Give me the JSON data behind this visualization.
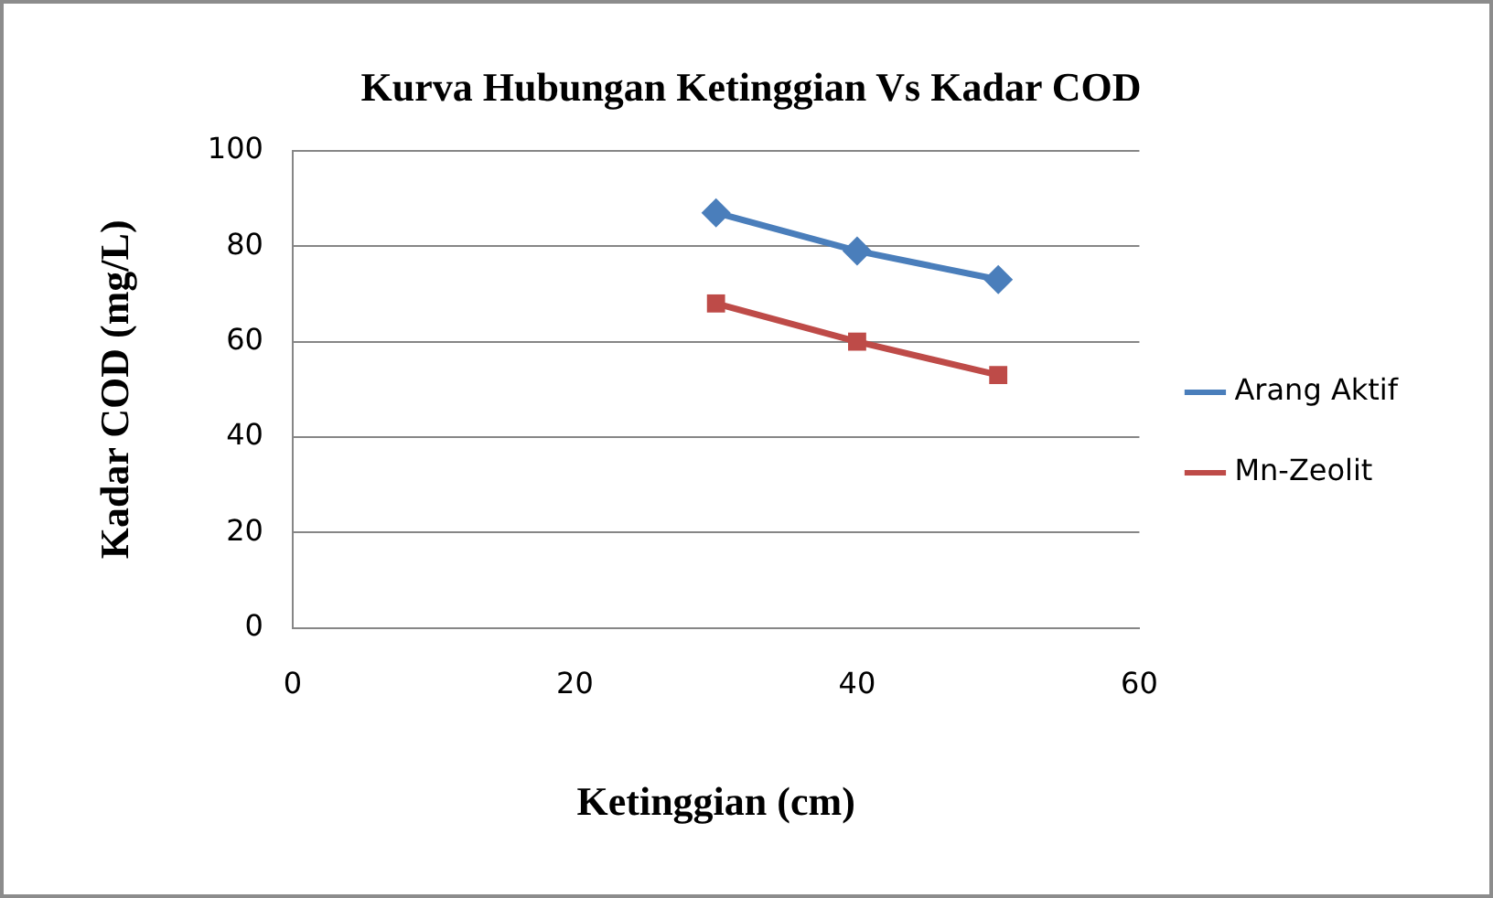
{
  "chart_data": {
    "type": "line",
    "title": "Kurva Hubungan Ketinggian Vs Kadar COD",
    "xlabel": "Ketinggian (cm)",
    "ylabel": "Kadar COD (mg/L)",
    "x": [
      30,
      40,
      50
    ],
    "series": [
      {
        "name": "Arang Aktif",
        "color": "#4a7ebb",
        "values": [
          87,
          79,
          73
        ],
        "marker": "diamond"
      },
      {
        "name": "Mn-Zeolit",
        "color": "#be4b48",
        "values": [
          68,
          60,
          53
        ],
        "marker": "square"
      }
    ],
    "xlim": [
      0,
      60
    ],
    "xticks": [
      0,
      20,
      40,
      60
    ],
    "ylim": [
      0,
      100
    ],
    "yticks": [
      0,
      20,
      40,
      60,
      80,
      100
    ],
    "grid": "y",
    "legend": "right",
    "line_style": "solid"
  }
}
